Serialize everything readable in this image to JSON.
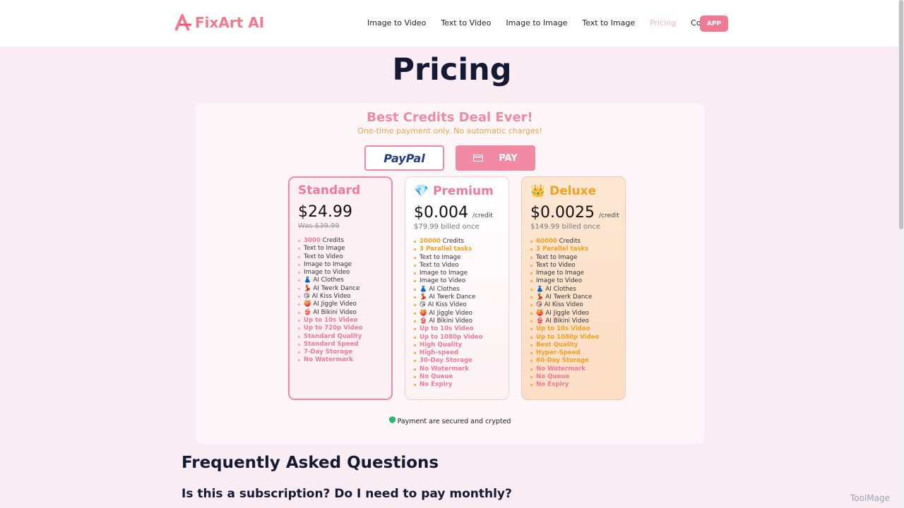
{
  "header": {
    "logo": "FixArt AI",
    "nav": [
      "Image to Video",
      "Text to Video",
      "Image to Image",
      "Text to Image",
      "Pricing",
      "Contact"
    ],
    "active_nav": 4,
    "app_button": "APP"
  },
  "page_title": "Pricing",
  "deal": {
    "title": "Best Credits Deal Ever!",
    "subtitle": "One-time payment only. No automatic charges!"
  },
  "payment_buttons": {
    "paypal": "PayPal",
    "card": "PAY"
  },
  "plans": [
    {
      "name": "Standard",
      "price": "$24.99",
      "note": "Was $39.99",
      "note_struck": true,
      "features": [
        {
          "lead": "3000",
          "text": "Credits"
        },
        {
          "text": "Text to Image"
        },
        {
          "text": "Text to Video"
        },
        {
          "text": "Image to Image"
        },
        {
          "text": "Image to Video"
        },
        {
          "text": "👗 AI Clothes"
        },
        {
          "text": "💃 AI Twerk Dance"
        },
        {
          "text": "😘 AI Kiss Video"
        },
        {
          "text": "🍑 AI Jiggle Video"
        },
        {
          "text": "👙 AI Bikini Video"
        },
        {
          "text": "Up to 10s Video",
          "accent": "pink"
        },
        {
          "text": "Up to 720p Video",
          "accent": "pink"
        },
        {
          "text": "Standard Quality",
          "accent": "pink"
        },
        {
          "text": "Standard Speed",
          "accent": "pink"
        },
        {
          "text": "7-Day Storage",
          "accent": "pink"
        },
        {
          "text": "No Watermark",
          "accent": "pink"
        }
      ]
    },
    {
      "name": "Premium",
      "icon": "💎",
      "price": "$0.004",
      "unit": "/credit",
      "note": "$79.99 billed once",
      "features": [
        {
          "lead": "20000",
          "text": "Credits"
        },
        {
          "text": "3 Parallel tasks",
          "accent": "orange"
        },
        {
          "text": "Text to Image"
        },
        {
          "text": "Text to Video"
        },
        {
          "text": "Image to Image"
        },
        {
          "text": "Image to Video"
        },
        {
          "text": "👗 AI Clothes"
        },
        {
          "text": "💃 AI Twerk Dance"
        },
        {
          "text": "😘 AI Kiss Video"
        },
        {
          "text": "🍑 AI Jiggle Video"
        },
        {
          "text": "👙 AI Bikini Video"
        },
        {
          "text": "Up to 10s Video",
          "accent": "pink"
        },
        {
          "text": "Up to 1080p Video",
          "accent": "pink"
        },
        {
          "text": "High Quality",
          "accent": "pink"
        },
        {
          "text": "High-speed",
          "accent": "pink"
        },
        {
          "text": "30-Day Storage",
          "accent": "pink"
        },
        {
          "text": "No Watermark",
          "accent": "pink"
        },
        {
          "text": "No Queue",
          "accent": "pink"
        },
        {
          "text": "No Expiry",
          "accent": "pink"
        }
      ]
    },
    {
      "name": "Deluxe",
      "icon": "👑",
      "price": "$0.0025",
      "unit": "/credit",
      "note": "$149.99 billed once",
      "features": [
        {
          "lead": "60000",
          "text": "Credits"
        },
        {
          "text": "3 Parallel tasks",
          "accent": "orange"
        },
        {
          "text": "Text to Image"
        },
        {
          "text": "Text to Video"
        },
        {
          "text": "Image to Image"
        },
        {
          "text": "Image to Video"
        },
        {
          "text": "👗 AI Clothes"
        },
        {
          "text": "💃 AI Twerk Dance"
        },
        {
          "text": "😘 AI Kiss Video"
        },
        {
          "text": "🍑 AI Jiggle Video"
        },
        {
          "text": "👙 AI Bikini Video"
        },
        {
          "text": "Up to 10s Video",
          "accent": "orange"
        },
        {
          "text": "Up to 1080p Video",
          "accent": "orange"
        },
        {
          "text": "Best Quality",
          "accent": "orange"
        },
        {
          "text": "Hyper-Speed",
          "accent": "orange"
        },
        {
          "text": "60-Day Storage",
          "accent": "orange"
        },
        {
          "text": "No Watermark",
          "accent": "pink"
        },
        {
          "text": "No Queue",
          "accent": "pink"
        },
        {
          "text": "No Expiry",
          "accent": "pink"
        }
      ]
    }
  ],
  "secure_note": "Payment are secured and crypted",
  "faq": {
    "title": "Frequently Asked Questions",
    "questions": [
      "Is this a subscription? Do I need to pay monthly?"
    ]
  },
  "watermark": "ToolMage"
}
